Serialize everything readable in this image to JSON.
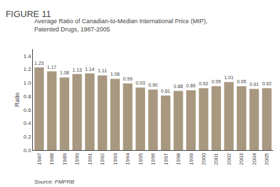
{
  "chart_data": {
    "type": "bar",
    "title": "FIGURE 11",
    "subtitle": "Average Ratio of Canadian-to-Median International Price (MIP),\nPatented Drugs, 1987-2005",
    "ylabel": "Ratio",
    "annotations": [
      "Source: PMPRB"
    ],
    "categories": [
      "1987",
      "1988",
      "1989",
      "1990",
      "1991",
      "1992",
      "1993",
      "1994",
      "1995",
      "1996",
      "1997",
      "1998",
      "1999",
      "2000",
      "2001",
      "2002",
      "2003",
      "2004",
      "2005"
    ],
    "values": [
      1.23,
      1.17,
      1.08,
      1.13,
      1.14,
      1.11,
      1.06,
      0.99,
      0.93,
      0.9,
      0.81,
      0.88,
      0.89,
      0.92,
      0.95,
      1.01,
      0.95,
      0.91,
      0.92
    ],
    "value_labels": [
      "1.23",
      "1.17",
      "1.08",
      "1.13",
      "1.14",
      "1.11",
      "1.06",
      "0.99",
      "0.93",
      "0.90",
      "0.81",
      "0.88",
      "0.89",
      "0.92",
      "0.95",
      "1.01",
      "0.95",
      "0.91",
      "0.92"
    ],
    "data_labels": true,
    "color": "#a89880",
    "ylim": [
      0.0,
      1.5
    ],
    "yticks": [
      {
        "value": 0,
        "label": "0.0"
      },
      0.2,
      0.4,
      0.6,
      0.8,
      {
        "value": 1,
        "label": "1.0"
      },
      1.2,
      1.4
    ],
    "grid": false
  }
}
